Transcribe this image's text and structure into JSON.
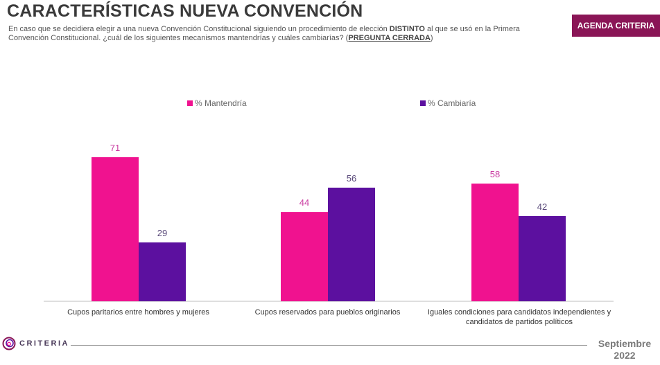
{
  "header": {
    "title": "CARACTERÍSTICAS NUEVA CONVENCIÓN",
    "subtitle_part1": "En caso que se decidiera elegir a una nueva Convención Constitucional siguiendo un procedimiento de elección ",
    "subtitle_bold": "DISTINTO",
    "subtitle_part2": " al que se usó en la Primera Convención Constitucional. ¿cuál de los siguientes mecanismos mantendrías y cuáles cambiarías? (",
    "subtitle_underline": "PREGUNTA CERRADA",
    "subtitle_part3": ")",
    "badge": "AGENDA CRITERIA"
  },
  "footer": {
    "logo_text": "CRITERIA",
    "date_line1": "Septiembre",
    "date_line2": "2022"
  },
  "colors": {
    "mantendria": "#f0128f",
    "cambiaria": "#5c109f",
    "badge": "#8a1556"
  },
  "chart_data": {
    "type": "bar",
    "categories": [
      "Cupos paritarios entre hombres y mujeres",
      "Cupos reservados para pueblos originarios",
      "Iguales condiciones para candidatos independientes y candidatos de partidos políticos"
    ],
    "series": [
      {
        "name": "% Mantendría",
        "values": [
          71,
          44,
          58
        ]
      },
      {
        "name": "% Cambiaría",
        "values": [
          29,
          56,
          42
        ]
      }
    ],
    "ylim": [
      0,
      100
    ],
    "grid": false,
    "legend": "top-center",
    "data_labels": true
  }
}
